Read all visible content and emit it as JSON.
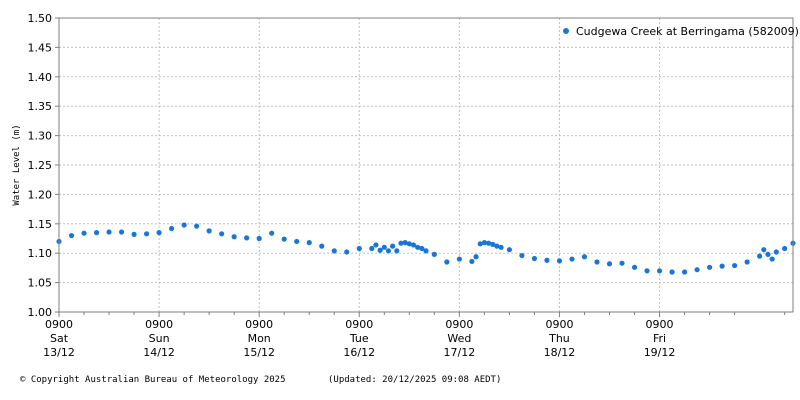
{
  "chart_data": {
    "type": "scatter",
    "ylabel": "Water Level (m)",
    "ylim": [
      1.0,
      1.5
    ],
    "y_ticks": [
      "1.00",
      "1.05",
      "1.10",
      "1.15",
      "1.20",
      "1.25",
      "1.30",
      "1.35",
      "1.40",
      "1.45",
      "1.50"
    ],
    "xlim_hours": [
      0,
      176
    ],
    "x_ticks": [
      {
        "time": "0900",
        "day": "Sat",
        "date": "13/12"
      },
      {
        "time": "0900",
        "day": "Sun",
        "date": "14/12"
      },
      {
        "time": "0900",
        "day": "Mon",
        "date": "15/12"
      },
      {
        "time": "0900",
        "day": "Tue",
        "date": "16/12"
      },
      {
        "time": "0900",
        "day": "Wed",
        "date": "17/12"
      },
      {
        "time": "0900",
        "day": "Thu",
        "date": "18/12"
      },
      {
        "time": "0900",
        "day": "Fri",
        "date": "19/12"
      }
    ],
    "grid": true,
    "legend_position": "top-right",
    "series": [
      {
        "name": "Cudgewa Creek at Berringama (582009)",
        "color": "#1a75d9",
        "x_hours": [
          0,
          3,
          6,
          9,
          12,
          15,
          18,
          21,
          24,
          27,
          30,
          33,
          36,
          39,
          42,
          45,
          48,
          51,
          54,
          57,
          60,
          63,
          66,
          69,
          72,
          75,
          76,
          77,
          78,
          79,
          80,
          81,
          82,
          83,
          84,
          85,
          86,
          87,
          88,
          90,
          93,
          96,
          99,
          100,
          101,
          102,
          103,
          104,
          105,
          106,
          108,
          111,
          114,
          117,
          120,
          123,
          126,
          129,
          132,
          135,
          138,
          141,
          144,
          147,
          150,
          153,
          156,
          159,
          162,
          165,
          168,
          169,
          170,
          171,
          172,
          174,
          176
        ],
        "y": [
          1.12,
          1.13,
          1.134,
          1.135,
          1.136,
          1.136,
          1.132,
          1.133,
          1.135,
          1.142,
          1.148,
          1.146,
          1.138,
          1.133,
          1.128,
          1.126,
          1.125,
          1.134,
          1.124,
          1.12,
          1.118,
          1.112,
          1.104,
          1.102,
          1.108,
          1.108,
          1.114,
          1.105,
          1.11,
          1.104,
          1.112,
          1.104,
          1.117,
          1.118,
          1.116,
          1.114,
          1.11,
          1.108,
          1.104,
          1.098,
          1.085,
          1.09,
          1.086,
          1.094,
          1.116,
          1.118,
          1.117,
          1.115,
          1.112,
          1.11,
          1.106,
          1.096,
          1.091,
          1.088,
          1.087,
          1.09,
          1.094,
          1.085,
          1.082,
          1.083,
          1.076,
          1.07,
          1.07,
          1.068,
          1.068,
          1.072,
          1.076,
          1.078,
          1.079,
          1.085,
          1.095,
          1.106,
          1.098,
          1.09,
          1.102,
          1.108,
          1.117
        ]
      }
    ]
  },
  "footer": {
    "copyright": "© Copyright Australian Bureau of Meteorology 2025",
    "updated": "(Updated: 20/12/2025 09:08 AEDT)"
  }
}
